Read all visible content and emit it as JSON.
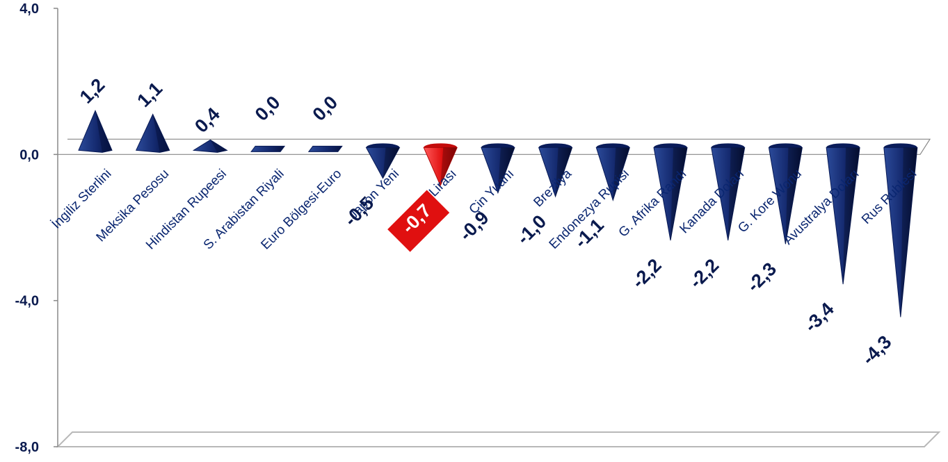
{
  "chart_data": {
    "type": "bar",
    "categories": [
      "İngiliz Sterlini",
      "Meksika Pesosu",
      "Hindistan Rupeesi",
      "S. Arabistan Riyali",
      "Euro Bölgesi-Euro",
      "Japon Yeni",
      "Türk Lirası",
      "Çin Yuanı",
      "Brezilya",
      "Endonezya Rupisi",
      "G. Afrika Randı",
      "Kanada Doları",
      "G. Kore Wonu",
      "Avustralya Doları",
      "Rus Rublesi"
    ],
    "values": [
      1.2,
      1.1,
      0.4,
      0.0,
      0.0,
      -0.5,
      -0.7,
      -0.9,
      -1.0,
      -1.1,
      -2.2,
      -2.2,
      -2.3,
      -3.4,
      -4.3
    ],
    "value_labels": [
      "1,2",
      "1,1",
      "0,4",
      "0,0",
      "0,0",
      "-0,5",
      "-0,7",
      "-0,9",
      "-1,0",
      "-1,1",
      "-2,2",
      "-2,2",
      "-2,3",
      "-3,4",
      "-4,3"
    ],
    "highlight_index": 6,
    "yticks": [
      4.0,
      0.0,
      -4.0,
      -8.0
    ],
    "ytick_labels": [
      "4,0",
      "0,0",
      "-4,0",
      "-8,0"
    ],
    "ylim": [
      -8,
      4
    ],
    "title": "",
    "xlabel": "",
    "ylabel": "",
    "grid": false,
    "colors": {
      "bar": "#0e2466",
      "highlight": "#e01010",
      "text": "#0a1a4e"
    }
  }
}
